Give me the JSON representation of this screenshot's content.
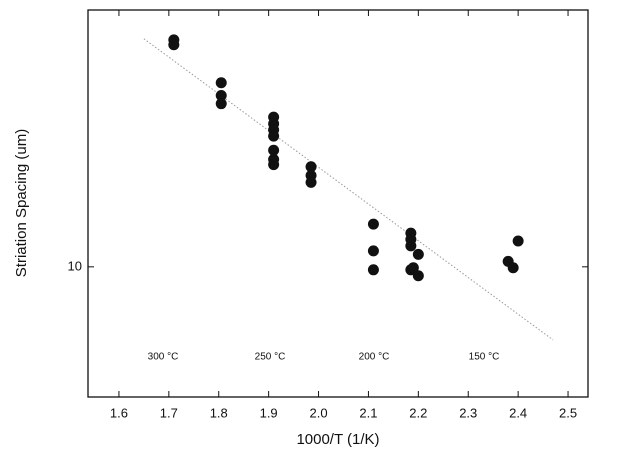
{
  "chart_data": {
    "type": "scatter",
    "x_label": "1000/T (1/K)",
    "y_label": "Striation Spacing (um)",
    "x": [
      1.71,
      1.71,
      1.805,
      1.805,
      1.805,
      1.91,
      1.91,
      1.91,
      1.91,
      1.91,
      1.91,
      1.91,
      1.985,
      1.985,
      1.985,
      2.11,
      2.11,
      2.11,
      2.185,
      2.185,
      2.185,
      2.185,
      2.19,
      2.2,
      2.2,
      2.38,
      2.39,
      2.4
    ],
    "values": [
      34.2,
      33.3,
      27.1,
      25.3,
      24.2,
      22.5,
      21.7,
      21.0,
      20.3,
      18.8,
      17.9,
      17.4,
      17.2,
      16.4,
      15.8,
      12.6,
      10.9,
      9.84,
      12.0,
      11.6,
      11.2,
      9.84,
      9.95,
      10.7,
      9.53,
      10.3,
      9.95,
      11.5
    ],
    "color": "#111111",
    "fit_line": {
      "x": [
        1.65,
        2.47
      ],
      "values": [
        34.4,
        6.73
      ],
      "color": "#999999"
    },
    "annotations": [
      "300 °C",
      "250 °C",
      "200 °C",
      "150 °C"
    ],
    "xlim": [
      1.538,
      2.54
    ],
    "xticks": [
      1.6,
      1.7,
      1.8,
      1.9,
      {
        "value": 2,
        "label": "2.0"
      },
      2.1,
      2.2,
      2.3,
      2.4,
      2.5
    ],
    "ylim": [
      4.94,
      40.2
    ],
    "yticks": [
      10
    ],
    "log_y": true
  }
}
